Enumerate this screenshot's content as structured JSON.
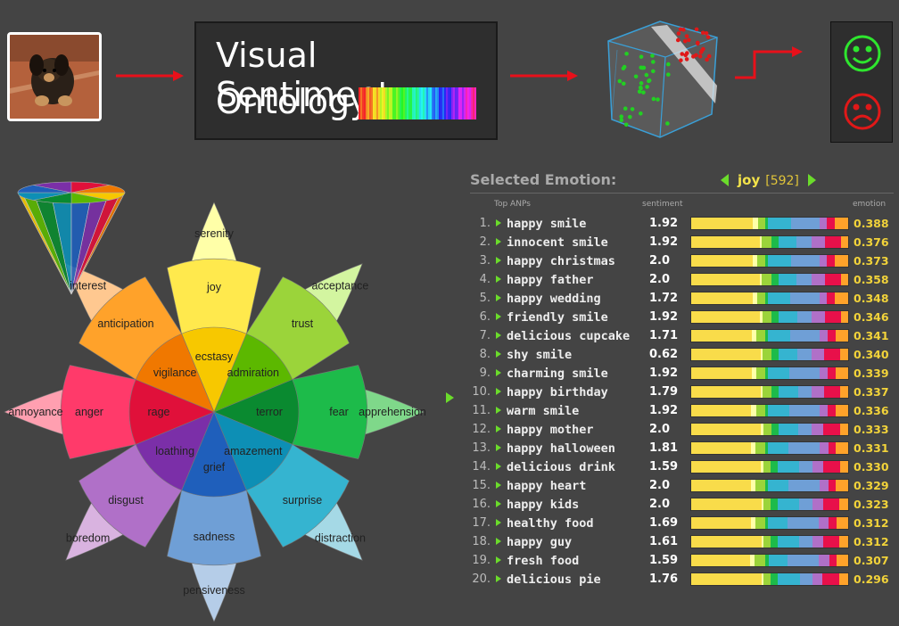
{
  "header": {
    "title_line1": "Visual Sentiment",
    "title_line2": "Ontology"
  },
  "colors": {
    "arrow_red": "#e8101a",
    "accent_green": "#6bdc2b",
    "emotion_yellow": "#f2d33a",
    "happy_face": "#2ee62e",
    "sad_face": "#e01818"
  },
  "icons": {
    "happy": "smiley-face-icon",
    "sad": "sad-face-icon",
    "nav_prev": "triangle-left-icon",
    "nav_next": "triangle-right-icon"
  },
  "wheel": {
    "labels": {
      "serenity": "serenity",
      "joy": "joy",
      "ecstasy": "ecstasy",
      "acceptance": "acceptance",
      "trust": "trust",
      "admiration": "admiration",
      "apprehension": "apprehension",
      "fear": "fear",
      "terror": "terror",
      "distraction": "distraction",
      "surprise": "surprise",
      "amazement": "amazement",
      "pensiveness": "pensiveness",
      "sadness": "sadness",
      "grief": "grief",
      "boredom": "boredom",
      "disgust": "disgust",
      "loathing": "loathing",
      "annoyance": "annoyance",
      "anger": "anger",
      "rage": "rage",
      "interest": "interest",
      "anticipation": "anticipation",
      "vigilance": "vigilance"
    }
  },
  "panel": {
    "title": "Selected Emotion:",
    "emotion": "joy",
    "count": "[592]",
    "col_anps": "Top ANPs",
    "col_sentiment": "sentiment",
    "col_emotion": "emotion",
    "rows": [
      {
        "num": "1.",
        "name": "happy smile",
        "sentiment": "1.92",
        "emotion": "0.388"
      },
      {
        "num": "2.",
        "name": "innocent smile",
        "sentiment": "1.92",
        "emotion": "0.376"
      },
      {
        "num": "3.",
        "name": "happy christmas",
        "sentiment": "2.0",
        "emotion": "0.373"
      },
      {
        "num": "4.",
        "name": "happy father",
        "sentiment": "2.0",
        "emotion": "0.358"
      },
      {
        "num": "5.",
        "name": "happy wedding",
        "sentiment": "1.72",
        "emotion": "0.348"
      },
      {
        "num": "6.",
        "name": "friendly smile",
        "sentiment": "1.92",
        "emotion": "0.346"
      },
      {
        "num": "7.",
        "name": "delicious cupcake",
        "sentiment": "1.71",
        "emotion": "0.341"
      },
      {
        "num": "8.",
        "name": "shy smile",
        "sentiment": "0.62",
        "emotion": "0.340"
      },
      {
        "num": "9.",
        "name": "charming smile",
        "sentiment": "1.92",
        "emotion": "0.339"
      },
      {
        "num": "10.",
        "name": "happy birthday",
        "sentiment": "1.79",
        "emotion": "0.337"
      },
      {
        "num": "11.",
        "name": "warm smile",
        "sentiment": "1.92",
        "emotion": "0.336"
      },
      {
        "num": "12.",
        "name": "happy mother",
        "sentiment": "2.0",
        "emotion": "0.333"
      },
      {
        "num": "13.",
        "name": "happy halloween",
        "sentiment": "1.81",
        "emotion": "0.331"
      },
      {
        "num": "14.",
        "name": "delicious drink",
        "sentiment": "1.59",
        "emotion": "0.330"
      },
      {
        "num": "15.",
        "name": "happy heart",
        "sentiment": "2.0",
        "emotion": "0.329"
      },
      {
        "num": "16.",
        "name": "happy kids",
        "sentiment": "2.0",
        "emotion": "0.323"
      },
      {
        "num": "17.",
        "name": "healthy food",
        "sentiment": "1.69",
        "emotion": "0.312"
      },
      {
        "num": "18.",
        "name": "happy guy",
        "sentiment": "1.61",
        "emotion": "0.312"
      },
      {
        "num": "19.",
        "name": "fresh food",
        "sentiment": "1.59",
        "emotion": "0.307"
      },
      {
        "num": "20.",
        "name": "delicious pie",
        "sentiment": "1.76",
        "emotion": "0.296"
      }
    ]
  }
}
